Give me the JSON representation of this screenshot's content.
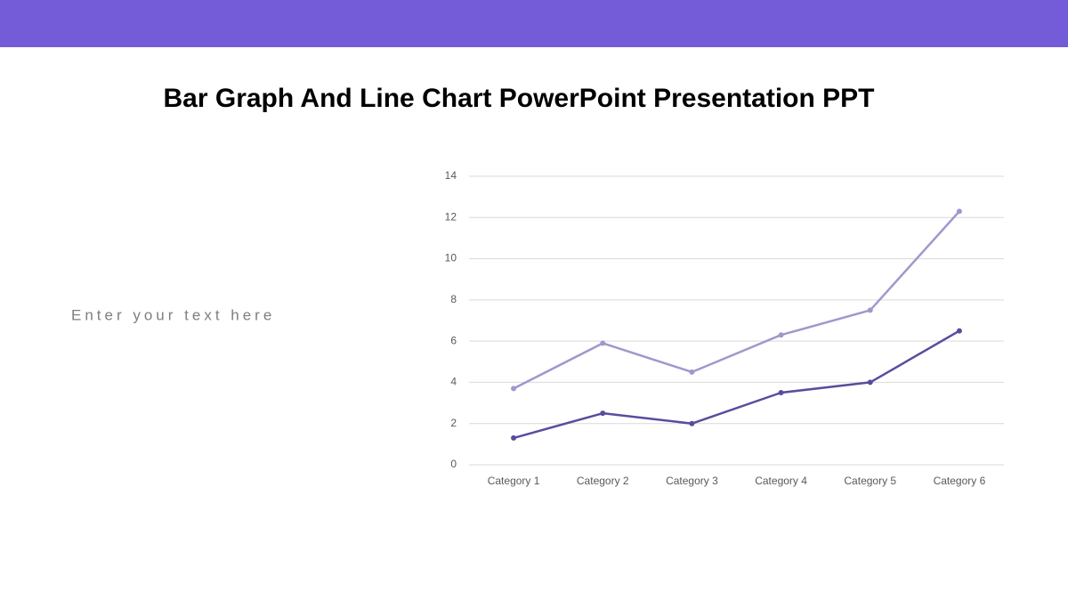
{
  "chart_data": {
    "type": "line",
    "title": "Bar Graph And Line Chart PowerPoint Presentation PPT",
    "categories": [
      "Category 1",
      "Category 2",
      "Category 3",
      "Category 4",
      "Category 5",
      "Category 6"
    ],
    "series": [
      {
        "color": "#a396cc",
        "values": [
          3.7,
          5.9,
          4.5,
          6.3,
          7.5,
          12.3
        ]
      },
      {
        "color": "#5b4c9e",
        "values": [
          1.3,
          2.5,
          2.0,
          3.5,
          4.0,
          6.5
        ]
      }
    ],
    "ylim": [
      0,
      14
    ],
    "yticks": [
      0,
      2,
      4,
      6,
      8,
      10,
      12,
      14
    ],
    "grid": true
  },
  "body_text": "Enter your text here"
}
